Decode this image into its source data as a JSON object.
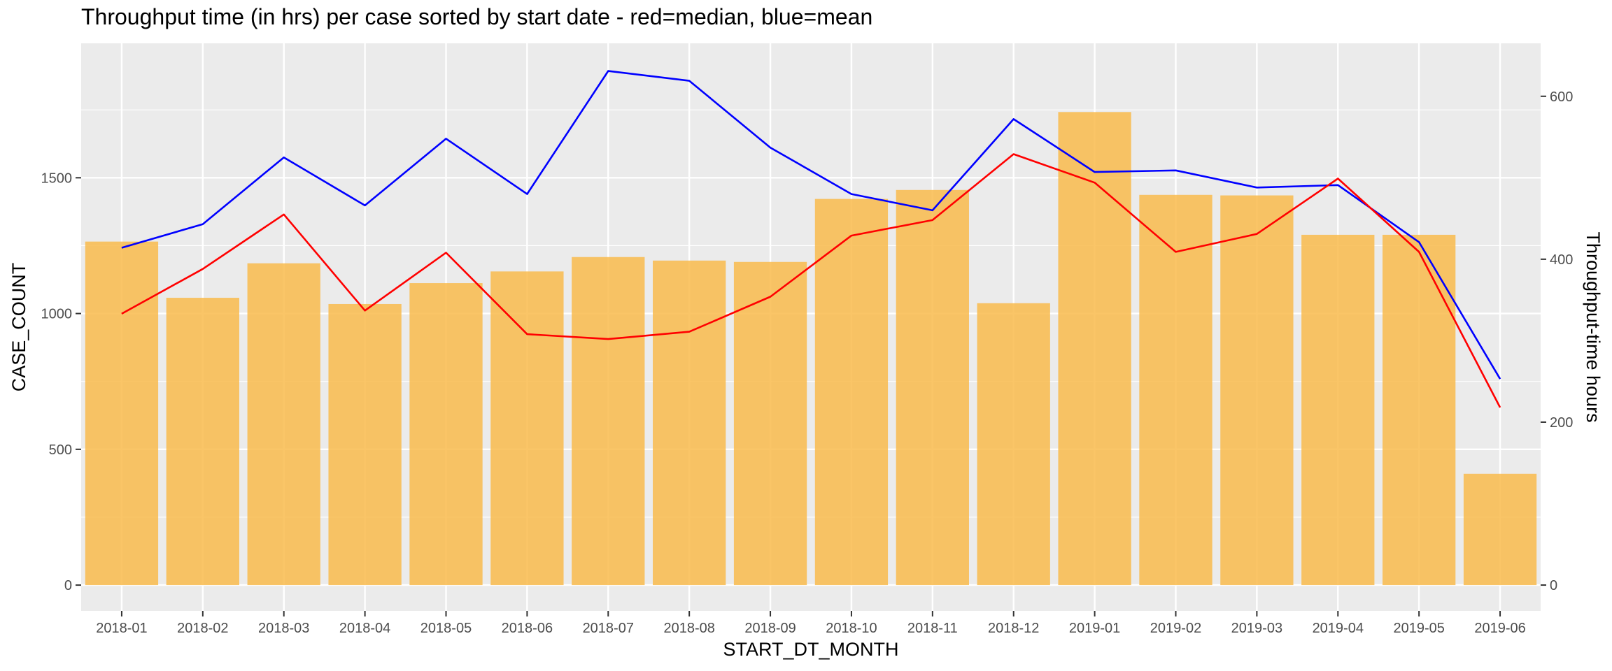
{
  "chart_data": {
    "type": "bar",
    "title": "Throughput time (in hrs) per case sorted by start date - red=median, blue=mean",
    "xlabel": "START_DT_MONTH",
    "ylabel": "CASE_COUNT",
    "y2label": "Throughput-time hours",
    "categories": [
      "2018-01",
      "2018-02",
      "2018-03",
      "2018-04",
      "2018-05",
      "2018-06",
      "2018-07",
      "2018-08",
      "2018-09",
      "2018-10",
      "2018-11",
      "2018-12",
      "2019-01",
      "2019-02",
      "2019-03",
      "2019-04",
      "2019-05",
      "2019-06"
    ],
    "bars": {
      "axis": "left",
      "color": "#f9bb4c",
      "values": [
        1265,
        1058,
        1185,
        1035,
        1112,
        1155,
        1208,
        1195,
        1190,
        1422,
        1455,
        1038,
        1742,
        1437,
        1435,
        1290,
        1290,
        410
      ]
    },
    "series": [
      {
        "axis": "right",
        "color": "#0000ff",
        "values": [
          414,
          443,
          525,
          466,
          548,
          480,
          631,
          619,
          537,
          480,
          460,
          572,
          507,
          509,
          488,
          491,
          421,
          253
        ]
      },
      {
        "axis": "right",
        "color": "#ff0000",
        "values": [
          333,
          388,
          455,
          337,
          408,
          308,
          302,
          311,
          354,
          429,
          448,
          529,
          494,
          409,
          431,
          499,
          409,
          218
        ]
      }
    ],
    "ylim": [
      -95,
      1995
    ],
    "y2lim": [
      -31.7,
      665
    ],
    "yticks": [
      0,
      500,
      1000,
      1500
    ],
    "y2ticks": [
      0,
      200,
      400,
      600
    ],
    "panel_background": "#ebebeb",
    "grid": true,
    "legend": "none"
  }
}
